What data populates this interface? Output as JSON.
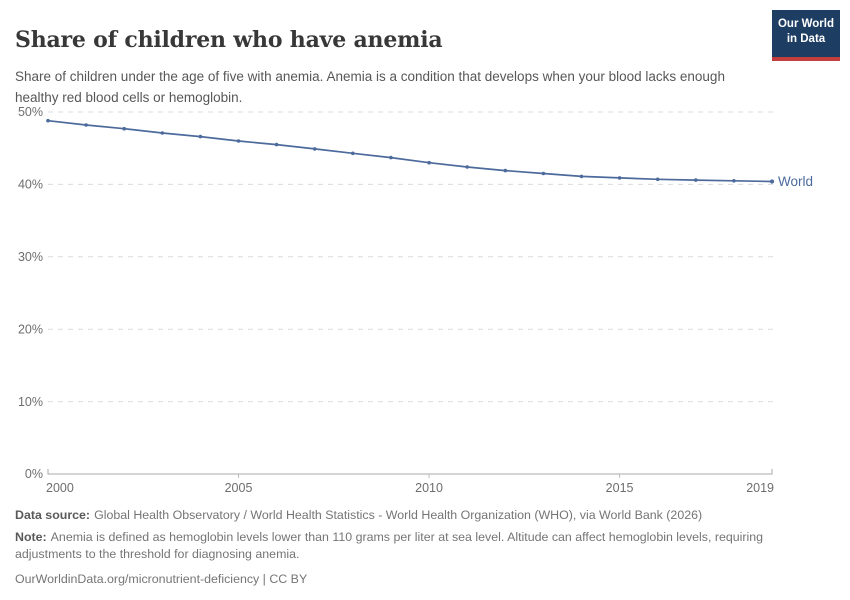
{
  "header": {
    "title": "Share of children who have anemia",
    "subtitle": "Share of children under the age of five with anemia. Anemia is a condition that develops when your blood lacks enough healthy red blood cells or hemoglobin.",
    "logo": {
      "line1": "Our World",
      "line2": "in Data"
    }
  },
  "chart_data": {
    "type": "line",
    "title": "Share of children who have anemia",
    "x": [
      2000,
      2001,
      2002,
      2003,
      2004,
      2005,
      2006,
      2007,
      2008,
      2009,
      2010,
      2011,
      2012,
      2013,
      2014,
      2015,
      2016,
      2017,
      2018,
      2019
    ],
    "series": [
      {
        "name": "World",
        "color": "#4c6a9c",
        "values": [
          48.8,
          48.2,
          47.7,
          47.1,
          46.6,
          46.0,
          45.5,
          44.9,
          44.3,
          43.7,
          43.0,
          42.4,
          41.9,
          41.5,
          41.1,
          40.9,
          40.7,
          40.6,
          40.5,
          40.4
        ]
      }
    ],
    "xlabel": "",
    "ylabel": "",
    "xlim": [
      2000,
      2019
    ],
    "ylim": [
      0,
      50
    ],
    "x_tick_labels": [
      "2000",
      "2005",
      "2010",
      "2015",
      "2019"
    ],
    "x_tick_values": [
      2000,
      2005,
      2010,
      2015,
      2019
    ],
    "y_tick_labels": [
      "0%",
      "10%",
      "20%",
      "30%",
      "40%",
      "50%"
    ],
    "y_tick_values": [
      0,
      10,
      20,
      30,
      40,
      50
    ],
    "grid": "horizontal-dashed",
    "legend": "line-end-label",
    "end_label": "World"
  },
  "footer": {
    "data_source_label": "Data source:",
    "data_source": "Global Health Observatory / World Health Statistics - World Health Organization (WHO), via World Bank (2026)",
    "note_label": "Note:",
    "note": "Anemia is defined as hemoglobin levels lower than 110 grams per liter at sea level. Altitude can affect hemoglobin levels, requiring adjustments to the threshold for diagnosing anemia.",
    "citation": "OurWorldinData.org/micronutrient-deficiency | CC BY"
  },
  "colors": {
    "line": "#4c6a9c",
    "grid": "#dcdcdc",
    "axis": "#a8a8a8",
    "tick_text": "#6e6e6e",
    "title_text": "#383838",
    "subtitle_text": "#575757",
    "footer_text": "#757575",
    "logo_bg": "#1d3d63",
    "logo_bar": "#c23d3d"
  }
}
